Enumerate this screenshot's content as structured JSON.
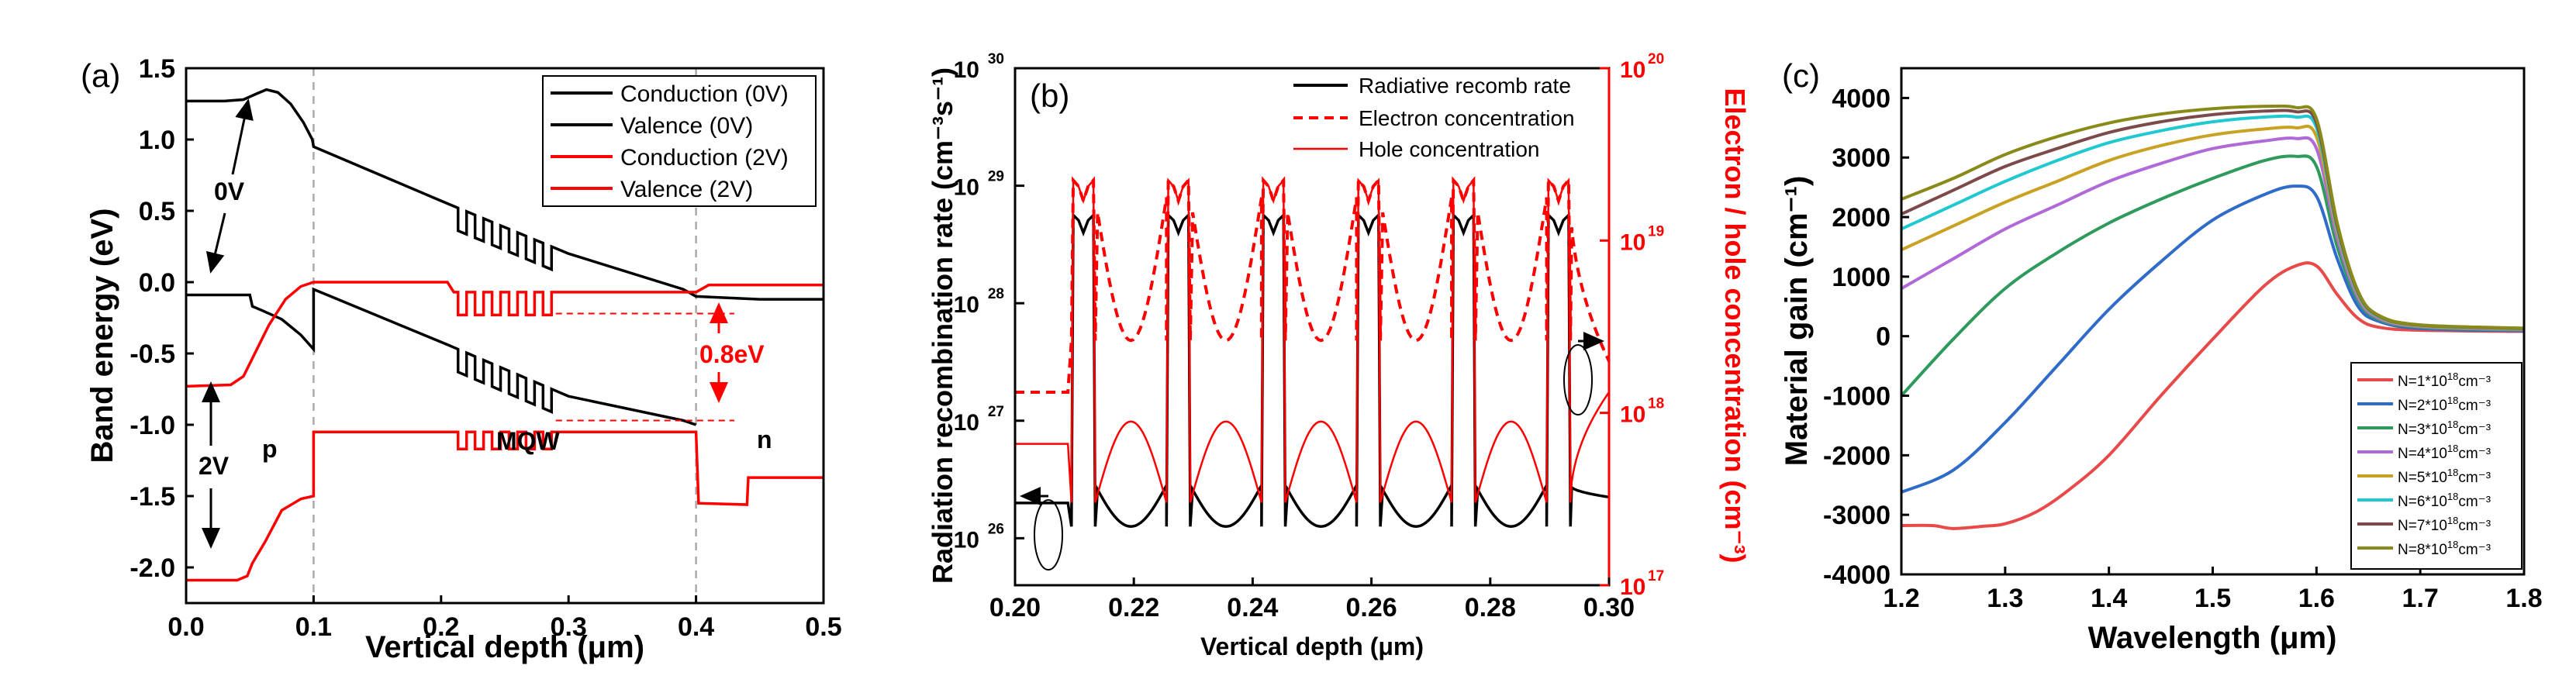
{
  "chart_data": [
    {
      "panel": "(a)",
      "type": "line",
      "xlabel": "Vertical depth (μm)",
      "ylabel": "Band energy (eV)",
      "xlim": [
        0.0,
        0.5
      ],
      "ylim": [
        -2.25,
        1.5
      ],
      "xticks": [
        "0.0",
        "0.1",
        "0.2",
        "0.3",
        "0.4",
        "0.5"
      ],
      "yticks": [
        "1.5",
        "1.0",
        "0.5",
        "0.0",
        "-0.5",
        "-1.0",
        "-1.5",
        "-2.0"
      ],
      "legend": [
        "Conduction (0V)",
        "Valence (0V)",
        "Conduction (2V)",
        "Valence (2V)"
      ],
      "annotations": {
        "bias0": "0V",
        "bias2": "2V",
        "p": "p",
        "mqw": "MQW",
        "n": "n",
        "offset": "0.8eV"
      },
      "series": [
        {
          "name": "Conduction (0V)",
          "color": "#000000",
          "points": [
            [
              0,
              1.27
            ],
            [
              0.03,
              1.27
            ],
            [
              0.045,
              1.28
            ],
            [
              0.055,
              1.32
            ],
            [
              0.063,
              1.35
            ],
            [
              0.072,
              1.33
            ],
            [
              0.082,
              1.25
            ],
            [
              0.092,
              1.12
            ],
            [
              0.099,
              1.0
            ],
            [
              0.1,
              0.95
            ],
            [
              0.2,
              0.57
            ],
            [
              0.208,
              0.54
            ],
            [
              0.3,
              0.2
            ],
            [
              0.39,
              -0.05
            ],
            [
              0.4,
              -0.1
            ],
            [
              0.45,
              -0.12
            ],
            [
              0.5,
              -0.12
            ]
          ],
          "qw": {
            "from": 0.21,
            "to": 0.29,
            "depth": -0.16
          }
        },
        {
          "name": "Valence (0V)",
          "color": "#000000",
          "points": [
            [
              0,
              -0.09
            ],
            [
              0.05,
              -0.09
            ],
            [
              0.052,
              -0.17
            ],
            [
              0.06,
              -0.2
            ],
            [
              0.075,
              -0.26
            ],
            [
              0.09,
              -0.37
            ],
            [
              0.1,
              -0.47
            ],
            [
              0.1,
              -0.05
            ],
            [
              0.2,
              -0.42
            ],
            [
              0.208,
              -0.45
            ],
            [
              0.3,
              -0.8
            ],
            [
              0.39,
              -0.97
            ],
            [
              0.4,
              -1.0
            ]
          ],
          "qw": {
            "from": 0.21,
            "to": 0.29,
            "depth": -0.16
          }
        },
        {
          "name": "Conduction (2V)",
          "color": "#ff0000",
          "points": [
            [
              0,
              -0.73
            ],
            [
              0.035,
              -0.72
            ],
            [
              0.045,
              -0.66
            ],
            [
              0.055,
              -0.48
            ],
            [
              0.065,
              -0.3
            ],
            [
              0.078,
              -0.12
            ],
            [
              0.09,
              -0.03
            ],
            [
              0.1,
              0.0
            ],
            [
              0.205,
              0.0
            ],
            [
              0.21,
              -0.07
            ],
            [
              0.29,
              -0.07
            ],
            [
              0.4,
              -0.07
            ],
            [
              0.41,
              -0.02
            ],
            [
              0.5,
              -0.02
            ]
          ],
          "qw": {
            "from": 0.21,
            "to": 0.29,
            "depth": -0.16
          }
        },
        {
          "name": "Valence (2V)",
          "color": "#ff0000",
          "points": [
            [
              0,
              -2.09
            ],
            [
              0.04,
              -2.09
            ],
            [
              0.048,
              -2.06
            ],
            [
              0.052,
              -1.97
            ],
            [
              0.062,
              -1.82
            ],
            [
              0.075,
              -1.6
            ],
            [
              0.09,
              -1.52
            ],
            [
              0.1,
              -1.5
            ],
            [
              0.1,
              -1.05
            ],
            [
              0.205,
              -1.05
            ],
            [
              0.29,
              -1.05
            ],
            [
              0.4,
              -1.05
            ],
            [
              0.402,
              -1.55
            ],
            [
              0.44,
              -1.56
            ],
            [
              0.441,
              -1.37
            ],
            [
              0.5,
              -1.37
            ]
          ],
          "qw": {
            "from": 0.21,
            "to": 0.29,
            "depth": -0.12
          }
        }
      ],
      "dashed_verticals": [
        0.1,
        0.4
      ],
      "offset_marks": [
        -0.22,
        -0.97
      ]
    },
    {
      "panel": "(b)",
      "type": "line",
      "xlabel": "Vertical depth (μm)",
      "ylabel_left": "Radiation recombination rate (cm⁻³s⁻¹)",
      "ylabel_right": "Electron / hole concentration (cm⁻³)",
      "xlim": [
        0.2,
        0.3
      ],
      "ylim_left_log10": [
        25.6,
        30
      ],
      "ylim_right_log10": [
        17,
        20
      ],
      "xticks": [
        "0.20",
        "0.22",
        "0.24",
        "0.26",
        "0.28",
        "0.30"
      ],
      "yticks_left": [
        "10",
        "10",
        "10",
        "10",
        "10"
      ],
      "yticks_left_exp": [
        "26",
        "27",
        "28",
        "29",
        "30"
      ],
      "yticks_right": [
        "10",
        "10",
        "10",
        "10"
      ],
      "yticks_right_exp": [
        "17",
        "18",
        "19",
        "20"
      ],
      "legend": [
        "Radiative recomb rate",
        "Electron concentration",
        "Hole concentration"
      ],
      "wells": [
        [
          0.2095,
          0.2135
        ],
        [
          0.2255,
          0.2295
        ],
        [
          0.2415,
          0.2455
        ],
        [
          0.2575,
          0.2615
        ],
        [
          0.2735,
          0.2775
        ],
        [
          0.2895,
          0.2935
        ]
      ],
      "series": [
        {
          "name": "Radiative recomb rate",
          "axis": "left",
          "color": "#000000",
          "well_peak_log": 28.75,
          "barrier_log": 26.15,
          "edges_log": [
            26.1,
            26.35
          ]
        },
        {
          "name": "Electron concentration",
          "axis": "right",
          "color": "#ff0000",
          "dash": true,
          "well_peak_log": 19.35,
          "barrier_min_log": 18.35,
          "edges_log": [
            18.1,
            18.3
          ]
        },
        {
          "name": "Hole concentration",
          "axis": "right",
          "color": "#ff0000",
          "well_peak_log": 19.35,
          "barrier_max_log": 17.9,
          "edges_log": [
            17.9,
            18.1
          ]
        }
      ]
    },
    {
      "panel": "(c)",
      "type": "line",
      "xlabel": "Wavelength (μm)",
      "ylabel": "Material gain (cm⁻¹)",
      "xlim": [
        1.2,
        1.8
      ],
      "ylim": [
        -4000,
        4500
      ],
      "xticks": [
        "1.2",
        "1.3",
        "1.4",
        "1.5",
        "1.6",
        "1.7",
        "1.8"
      ],
      "yticks": [
        "4000",
        "3000",
        "2000",
        "1000",
        "0",
        "-1000",
        "-2000",
        "-3000",
        "-4000"
      ],
      "legend_unit": "cm⁻³",
      "series": [
        {
          "name": "N=1*10",
          "exp": "18",
          "color": "#e84a4a",
          "values": [
            [
              1.2,
              -3180
            ],
            [
              1.23,
              -3180
            ],
            [
              1.25,
              -3230
            ],
            [
              1.28,
              -3190
            ],
            [
              1.3,
              -3150
            ],
            [
              1.33,
              -2950
            ],
            [
              1.36,
              -2600
            ],
            [
              1.4,
              -2000
            ],
            [
              1.45,
              -1000
            ],
            [
              1.5,
              -50
            ],
            [
              1.55,
              850
            ],
            [
              1.58,
              1180
            ],
            [
              1.6,
              1180
            ],
            [
              1.62,
              700
            ],
            [
              1.64,
              300
            ],
            [
              1.66,
              150
            ],
            [
              1.7,
              100
            ],
            [
              1.8,
              80
            ]
          ]
        },
        {
          "name": "N=2*10",
          "exp": "18",
          "color": "#2f6cc9",
          "values": [
            [
              1.2,
              -2620
            ],
            [
              1.25,
              -2250
            ],
            [
              1.3,
              -1450
            ],
            [
              1.35,
              -500
            ],
            [
              1.4,
              450
            ],
            [
              1.45,
              1250
            ],
            [
              1.5,
              1950
            ],
            [
              1.55,
              2380
            ],
            [
              1.58,
              2520
            ],
            [
              1.6,
              2350
            ],
            [
              1.62,
              1300
            ],
            [
              1.64,
              500
            ],
            [
              1.66,
              250
            ],
            [
              1.7,
              130
            ],
            [
              1.8,
              90
            ]
          ]
        },
        {
          "name": "N=3*10",
          "exp": "18",
          "color": "#2e9a5c",
          "values": [
            [
              1.2,
              -1000
            ],
            [
              1.25,
              -50
            ],
            [
              1.3,
              800
            ],
            [
              1.35,
              1400
            ],
            [
              1.4,
              1900
            ],
            [
              1.45,
              2300
            ],
            [
              1.5,
              2650
            ],
            [
              1.55,
              2950
            ],
            [
              1.58,
              3020
            ],
            [
              1.6,
              2850
            ],
            [
              1.62,
              1500
            ],
            [
              1.64,
              600
            ],
            [
              1.66,
              280
            ],
            [
              1.7,
              150
            ],
            [
              1.8,
              100
            ]
          ]
        },
        {
          "name": "N=4*10",
          "exp": "18",
          "color": "#b06ad8",
          "values": [
            [
              1.2,
              800
            ],
            [
              1.25,
              1300
            ],
            [
              1.3,
              1800
            ],
            [
              1.35,
              2200
            ],
            [
              1.4,
              2600
            ],
            [
              1.45,
              2900
            ],
            [
              1.5,
              3150
            ],
            [
              1.55,
              3280
            ],
            [
              1.58,
              3320
            ],
            [
              1.6,
              3150
            ],
            [
              1.62,
              1650
            ],
            [
              1.64,
              650
            ],
            [
              1.66,
              300
            ],
            [
              1.7,
              160
            ],
            [
              1.8,
              110
            ]
          ]
        },
        {
          "name": "N=5*10",
          "exp": "18",
          "color": "#c9a224",
          "values": [
            [
              1.2,
              1450
            ],
            [
              1.25,
              1850
            ],
            [
              1.3,
              2250
            ],
            [
              1.35,
              2600
            ],
            [
              1.4,
              2950
            ],
            [
              1.45,
              3200
            ],
            [
              1.5,
              3380
            ],
            [
              1.55,
              3480
            ],
            [
              1.58,
              3500
            ],
            [
              1.6,
              3350
            ],
            [
              1.62,
              1750
            ],
            [
              1.64,
              700
            ],
            [
              1.66,
              320
            ],
            [
              1.7,
              170
            ],
            [
              1.8,
              120
            ]
          ]
        },
        {
          "name": "N=6*10",
          "exp": "18",
          "color": "#20c8d0",
          "values": [
            [
              1.2,
              1800
            ],
            [
              1.25,
              2200
            ],
            [
              1.3,
              2600
            ],
            [
              1.35,
              2950
            ],
            [
              1.4,
              3250
            ],
            [
              1.45,
              3450
            ],
            [
              1.5,
              3600
            ],
            [
              1.55,
              3680
            ],
            [
              1.58,
              3680
            ],
            [
              1.6,
              3500
            ],
            [
              1.62,
              1800
            ],
            [
              1.64,
              720
            ],
            [
              1.66,
              330
            ],
            [
              1.7,
              180
            ],
            [
              1.8,
              125
            ]
          ]
        },
        {
          "name": "N=7*10",
          "exp": "18",
          "color": "#7d4a4a",
          "values": [
            [
              1.2,
              2050
            ],
            [
              1.25,
              2450
            ],
            [
              1.3,
              2850
            ],
            [
              1.35,
              3150
            ],
            [
              1.4,
              3420
            ],
            [
              1.45,
              3600
            ],
            [
              1.5,
              3720
            ],
            [
              1.55,
              3780
            ],
            [
              1.58,
              3770
            ],
            [
              1.6,
              3580
            ],
            [
              1.62,
              1850
            ],
            [
              1.64,
              740
            ],
            [
              1.66,
              340
            ],
            [
              1.7,
              185
            ],
            [
              1.8,
              130
            ]
          ]
        },
        {
          "name": "N=8*10",
          "exp": "18",
          "color": "#8a8a1a",
          "values": [
            [
              1.2,
              2300
            ],
            [
              1.25,
              2650
            ],
            [
              1.3,
              3050
            ],
            [
              1.35,
              3350
            ],
            [
              1.4,
              3580
            ],
            [
              1.45,
              3730
            ],
            [
              1.5,
              3820
            ],
            [
              1.55,
              3860
            ],
            [
              1.58,
              3840
            ],
            [
              1.6,
              3650
            ],
            [
              1.62,
              1900
            ],
            [
              1.64,
              760
            ],
            [
              1.66,
              350
            ],
            [
              1.7,
              190
            ],
            [
              1.8,
              135
            ]
          ]
        }
      ]
    }
  ]
}
